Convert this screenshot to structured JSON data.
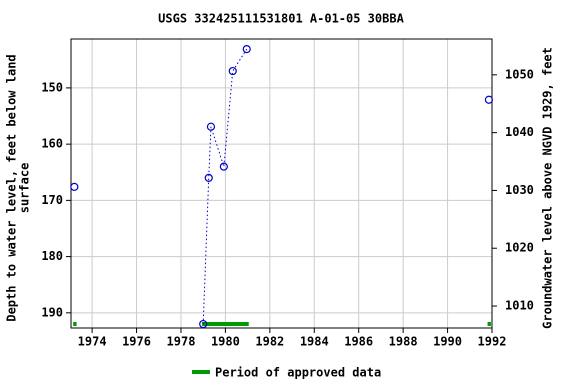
{
  "chart_data": {
    "type": "line",
    "title": "USGS 332425111531801 A-01-05 30BBA",
    "ylabel": [
      "Depth to water level, feet below land",
      "surface"
    ],
    "y2label": "Groundwater level above NGVD 1929, feet",
    "x": [
      1973.2,
      null,
      1979.0,
      1979.25,
      1979.35,
      1979.93,
      1980.33,
      1980.96,
      null,
      1991.86
    ],
    "series": [
      {
        "color": "#0000cc",
        "values": [
          167.6,
          null,
          192.0,
          166.0,
          156.9,
          164.0,
          147.0,
          143.1,
          null,
          152.1
        ]
      }
    ],
    "xlim": [
      1973.05,
      1992
    ],
    "xticks": [
      1974,
      1976,
      1978,
      1980,
      1982,
      1984,
      1986,
      1988,
      1990,
      1992
    ],
    "ylim": [
      192.7,
      141.3
    ],
    "yticks": [
      150,
      160,
      170,
      180,
      190
    ],
    "y2lim": [
      1006.2,
      1056.2
    ],
    "y2ticks": [
      1010,
      1020,
      1030,
      1040,
      1050
    ],
    "grid": true,
    "approved_periods": {
      "name": "Period of approved data",
      "color": "#009900",
      "ranges": [
        [
          1973.15,
          1973.3
        ],
        [
          1978.95,
          1981.05
        ],
        [
          1991.8,
          1991.95
        ]
      ]
    }
  }
}
